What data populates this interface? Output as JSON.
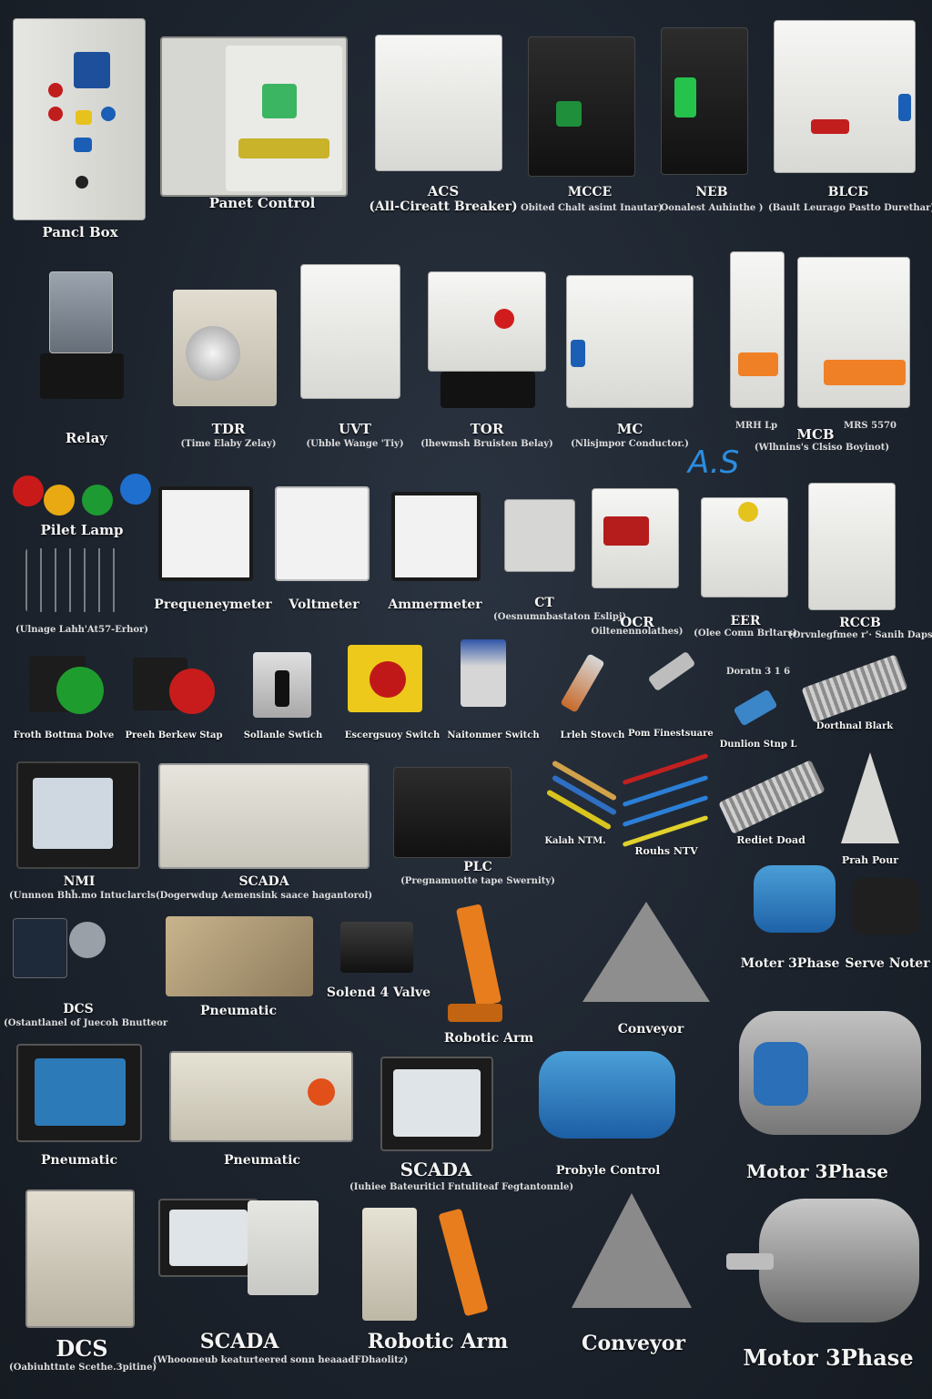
{
  "watermark": "A.S",
  "rows": [
    [
      {
        "id": "panel-box",
        "label": "Pancl Box",
        "sub": ""
      },
      {
        "id": "panet-control",
        "label": "Panet Control",
        "sub": ""
      },
      {
        "id": "acs",
        "label": "ACS",
        "sub": "(All-Cireatt Breaker)"
      },
      {
        "id": "mcce",
        "label": "MCCE",
        "sub": "Obited Chalt asimt Inautar)"
      },
      {
        "id": "neb",
        "label": "NEB",
        "sub": "Oonalest Auhinthe )"
      },
      {
        "id": "blcb",
        "label": "BLCБ",
        "sub": "(Bault Leurago Pastto Durethar)"
      }
    ],
    [
      {
        "id": "relay",
        "label": "Relay",
        "sub": ""
      },
      {
        "id": "tdr",
        "label": "TDR",
        "sub": "(Time Elaby Zelay)"
      },
      {
        "id": "uvt",
        "label": "UVT",
        "sub": "(Uhble Wange 'Tiy)"
      },
      {
        "id": "tor",
        "label": "TOR",
        "sub": "(lhewmsh Bruisten Belay)"
      },
      {
        "id": "mc",
        "label": "MC",
        "sub": "(Nlisjmpor Conductor.)"
      },
      {
        "id": "mcb",
        "label": "MCB",
        "sub": "(Wlhnins's Clsiso Boyinot)",
        "extra1": "MRH Lp",
        "extra2": "MRS 5570"
      }
    ],
    [
      {
        "id": "pilot-lamp",
        "label": "Pilet Lamp",
        "sub": "(Ulnage Lahh'At57-Erhor)"
      },
      {
        "id": "frequencymeter",
        "label": "Prequeneymeter",
        "sub": ""
      },
      {
        "id": "voltmeter",
        "label": "Voltmeter",
        "sub": ""
      },
      {
        "id": "ammeter",
        "label": "Ammermeter",
        "sub": ""
      },
      {
        "id": "ct",
        "label": "CT",
        "sub": "(Oesnumnbastaton Eslipj)"
      },
      {
        "id": "ocr",
        "label": "OCR",
        "sub": "Oiltenennolathes)"
      },
      {
        "id": "eer",
        "label": "EER",
        "sub": "(Olee Comn Brltars)"
      },
      {
        "id": "rccb",
        "label": "RCCB",
        "sub": "(Orvnlegfmee r'· Sanih Dapsien)"
      }
    ],
    [
      {
        "id": "push-button",
        "label": "Froth Bottma Dolve",
        "sub": ""
      },
      {
        "id": "push-breaker",
        "label": "Preeh Berkew Stap",
        "sub": ""
      },
      {
        "id": "selector-switch",
        "label": "Sollanle Swtich",
        "sub": ""
      },
      {
        "id": "emergency-switch",
        "label": "Escergsuoy Switch",
        "sub": ""
      },
      {
        "id": "maintained-switch",
        "label": "Naitonmer Switch",
        "sub": ""
      },
      {
        "id": "cable-lug",
        "label": "Lrleh Stovch",
        "sub": ""
      },
      {
        "id": "pom-finest",
        "label": "Pom Finestsuare",
        "sub": ""
      },
      {
        "id": "ferrule",
        "label": "Dunlion Stnp L",
        "sub": "Doratn 3 1 6"
      },
      {
        "id": "terminal-block",
        "label": "Dorthnal Blark",
        "sub": ""
      }
    ],
    [
      {
        "id": "hmi",
        "label": "NMI",
        "sub": "(Unnnon Bhh̃.mo Intuclarcls"
      },
      {
        "id": "scada-1",
        "label": "SCADA",
        "sub": "(Dogerwdup Aemensink saace hagantorol)"
      },
      {
        "id": "plc",
        "label": "PLC",
        "sub": "(Pregnamuotte tape Swernity)"
      },
      {
        "id": "kalah",
        "label": "Kalah NTM.",
        "sub": ""
      },
      {
        "id": "rouhs",
        "label": "Rouhs NTV",
        "sub": ""
      },
      {
        "id": "rediet",
        "label": "Rediet Doad",
        "sub": ""
      },
      {
        "id": "prah-pour",
        "label": "Prah Pour",
        "sub": ""
      }
    ],
    [
      {
        "id": "dcs-1",
        "label": "DCS",
        "sub": "(Ostantlanel of Juecoh Bnutteor"
      },
      {
        "id": "pneumatic-1",
        "label": "Pneumatic",
        "sub": ""
      },
      {
        "id": "solenoid",
        "label": "Solend 4 Valve",
        "sub": ""
      },
      {
        "id": "robotic-1",
        "label": "Robotic Arm",
        "sub": ""
      },
      {
        "id": "conveyor-1",
        "label": "Conveyor",
        "sub": ""
      },
      {
        "id": "motor-a",
        "label": "Moter 3Phase",
        "sub": ""
      },
      {
        "id": "servo",
        "label": "Serve Noter",
        "sub": ""
      }
    ],
    [
      {
        "id": "pneumatic-2",
        "label": "Pneumatic",
        "sub": ""
      },
      {
        "id": "pneumatic-3",
        "label": "Pneumatic",
        "sub": ""
      },
      {
        "id": "scada-2",
        "label": "SCADA",
        "sub": "(Iuhiee Bateuriticl Fntuliteaf Fegtantonnle)"
      },
      {
        "id": "probyle",
        "label": "Probyle Control",
        "sub": ""
      },
      {
        "id": "motor-b",
        "label": "Motor 3Phase",
        "sub": ""
      }
    ],
    [
      {
        "id": "dcs-2",
        "label": "DCS",
        "sub": "(Oabiuhttnte Scethe.3pitine)"
      },
      {
        "id": "scada-3",
        "label": "SCADA",
        "sub": "(Whoooneub keaturteered sonn heaaadFDhaolitz)"
      },
      {
        "id": "robotic-2",
        "label": "Robotic Arm",
        "sub": ""
      },
      {
        "id": "conveyor-2",
        "label": "Conveyor",
        "sub": ""
      },
      {
        "id": "motor-c",
        "label": "Motor 3Phase",
        "sub": ""
      }
    ]
  ]
}
